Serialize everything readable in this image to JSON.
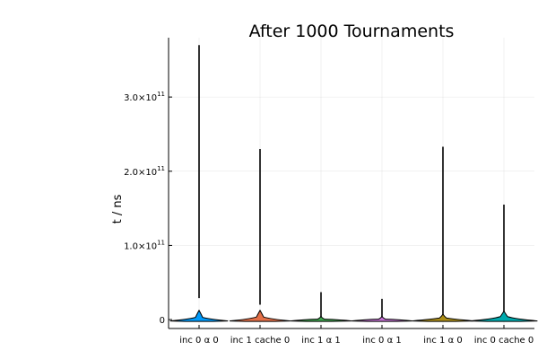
{
  "chart_data": {
    "type": "violin",
    "title": "After 1000 Tournaments",
    "ylabel": "t / ns",
    "xlabel": "",
    "ylim": [
      -12000000000.0,
      380000000000.0
    ],
    "y_ticks": [
      {
        "value": 0,
        "base": "0",
        "exp": ""
      },
      {
        "value": 100000000000.0,
        "base": "1.0×10",
        "exp": "11"
      },
      {
        "value": 200000000000.0,
        "base": "2.0×10",
        "exp": "11"
      },
      {
        "value": 300000000000.0,
        "base": "3.0×10",
        "exp": "11"
      }
    ],
    "grid": true,
    "legend": "none",
    "categories": [
      "inc 0 α 0",
      "inc 1 cache 0",
      "inc 1 α 1",
      "inc 0 α 1",
      "inc 1 α 0",
      "inc 0 cache 0"
    ],
    "series": [
      {
        "category": "inc 0 α 0",
        "color": "#009AFA",
        "max": 370000000000.0,
        "median": 3000000000.0,
        "body_top": 10000000000.0,
        "whisker_top": 29000000000.0,
        "max_halfwidth": 0.95
      },
      {
        "category": "inc 1 cache 0",
        "color": "#E36F47",
        "max": 230000000000.0,
        "median": 3500000000.0,
        "body_top": 10000000000.0,
        "whisker_top": 20000000000.0,
        "max_halfwidth": 1.0
      },
      {
        "category": "inc 1 α 1",
        "color": "#3EA44E",
        "max": 37000000000.0,
        "median": 500000000.0,
        "body_top": 2000000000.0,
        "whisker_top": 2000000000.0,
        "max_halfwidth": 1.0
      },
      {
        "category": "inc 0 α 1",
        "color": "#C371D2",
        "max": 28000000000.0,
        "median": 500000000.0,
        "body_top": 2000000000.0,
        "whisker_top": 2000000000.0,
        "max_halfwidth": 1.0
      },
      {
        "category": "inc 1 α 0",
        "color": "#AC8E18",
        "max": 233000000000.0,
        "median": 2000000000.0,
        "body_top": 5000000000.0,
        "whisker_top": 6000000000.0,
        "max_halfwidth": 1.0
      },
      {
        "category": "inc 0 cache 0",
        "color": "#00A9AD",
        "max": 155000000000.0,
        "median": 4000000000.0,
        "body_top": 9000000000.0,
        "whisker_top": 10000000000.0,
        "max_halfwidth": 1.1
      }
    ]
  }
}
